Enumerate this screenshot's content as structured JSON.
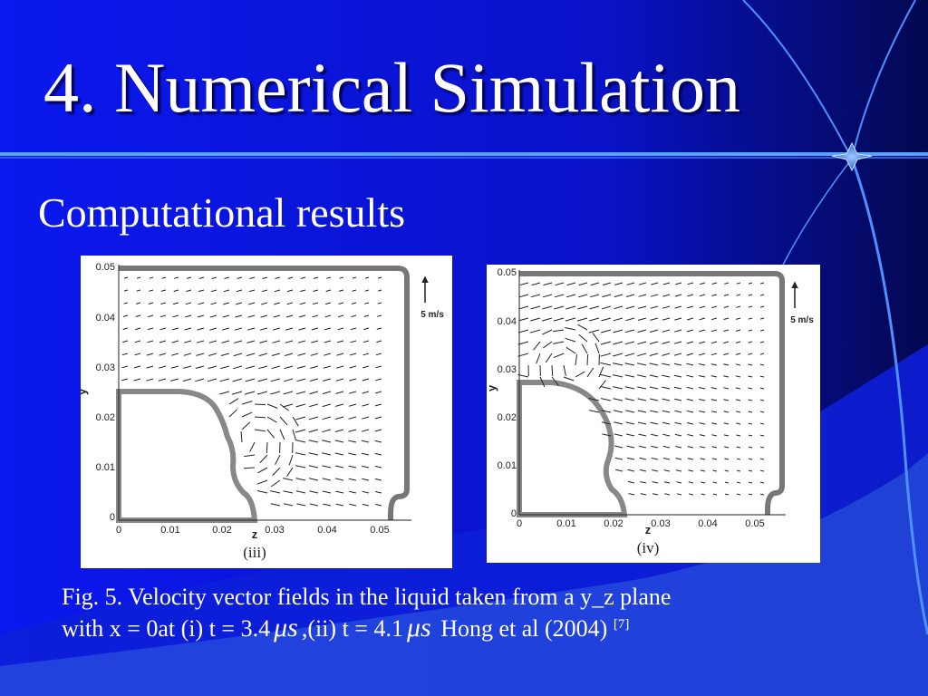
{
  "slide": {
    "title": "4. Numerical Simulation",
    "subtitle": "Computational results",
    "accent_color": "#5aa0ff",
    "background_color": "#0a14e6"
  },
  "figures": [
    {
      "panel_label": "(iii)",
      "y_axis_label": "y",
      "x_axis_label": "z",
      "y_ticks": [
        "0.05",
        "0.04",
        "0.03",
        "0.02",
        "0.01",
        "0"
      ],
      "x_ticks": [
        "0",
        "0.01",
        "0.02",
        "0.03",
        "0.04",
        "0.05"
      ],
      "scale_label": "5 m/s"
    },
    {
      "panel_label": "(iv)",
      "y_axis_label": "y",
      "x_axis_label": "z",
      "y_ticks": [
        "0.05",
        "0.04",
        "0.03",
        "0.02",
        "0.01",
        "0"
      ],
      "x_ticks": [
        "0",
        "0.01",
        "0.02",
        "0.03",
        "0.04",
        "0.05"
      ],
      "scale_label": "5 m/s"
    }
  ],
  "caption": {
    "line1": "Fig. 5. Velocity vector fields in the liquid taken from a y_z plane",
    "part1": "with x = 0at (i) t = 3.4",
    "mu_symbol": "μs",
    "part2": ",(ii) t = 4.1",
    "part3": "Hong et al (2004)",
    "citation": "[7]"
  }
}
